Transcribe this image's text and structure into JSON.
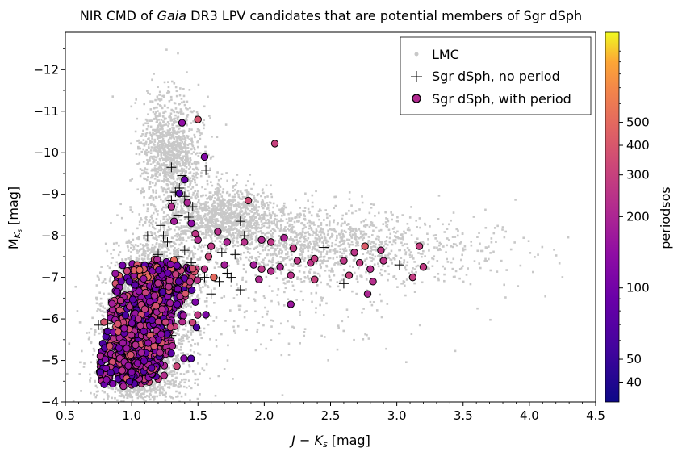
{
  "chart_data": {
    "type": "scatter",
    "title_pre": "NIR CMD of ",
    "title_em": "Gaia",
    "title_post": " DR3 LPV candidates that are potential members of Sgr dSph",
    "xlabel_main": "J − K",
    "xlabel_sub": "s",
    "xlabel_unit": " [mag]",
    "ylabel_main": "M",
    "ylabel_sub": "K",
    "ylabel_subsub": "s",
    "ylabel_unit": " [mag]",
    "xlim": [
      0.5,
      4.5
    ],
    "ylim": [
      -4,
      -12.9
    ],
    "xticks": [
      0.5,
      1.0,
      1.5,
      2.0,
      2.5,
      3.0,
      3.5,
      4.0,
      4.5
    ],
    "xtick_labels": [
      "0.5",
      "1.0",
      "1.5",
      "2.0",
      "2.5",
      "3.0",
      "3.5",
      "4.0",
      "4.5"
    ],
    "yticks": [
      -4,
      -5,
      -6,
      -7,
      -8,
      -9,
      -10,
      -11,
      -12
    ],
    "ytick_labels": [
      "−4",
      "−5",
      "−6",
      "−7",
      "−8",
      "−9",
      "−10",
      "−11",
      "−12"
    ],
    "legend": {
      "position": "upper-right",
      "entries": [
        "LMC",
        "Sgr dSph, no period",
        "Sgr dSph, with period"
      ]
    },
    "colorbar": {
      "label": "periodsos",
      "scale": "log",
      "range": [
        33,
        1200
      ],
      "ticks": [
        40,
        50,
        100,
        200,
        300,
        400,
        500
      ],
      "tick_labels": [
        "40",
        "50",
        "100",
        "200",
        "300",
        "400",
        "500"
      ]
    },
    "colors": {
      "lmc": "#c8c8c8",
      "cross": "#000000",
      "outline": "#000000"
    },
    "series": [
      {
        "name": "LMC",
        "style": "gray-dot",
        "density_components": [
          {
            "cx": 1.1,
            "cy": -5.9,
            "sx": 0.16,
            "sy": 0.7,
            "n": 2200
          },
          {
            "cx": 1.22,
            "cy": -7.2,
            "sx": 0.15,
            "sy": 0.55,
            "n": 900
          },
          {
            "cx": 1.3,
            "cy": -10.0,
            "sx": 0.12,
            "sy": 0.7,
            "n": 1100
          },
          {
            "cx": 1.05,
            "cy": -4.6,
            "sx": 0.2,
            "sy": 0.45,
            "n": 800
          },
          {
            "cx": 1.7,
            "cy": -8.5,
            "sx": 0.22,
            "sy": 0.35,
            "n": 1100
          },
          {
            "cx": 2.3,
            "cy": -7.9,
            "sx": 0.35,
            "sy": 0.4,
            "n": 900
          },
          {
            "cx": 3.1,
            "cy": -7.6,
            "sx": 0.45,
            "sy": 0.45,
            "n": 350
          },
          {
            "cx": 2.0,
            "cy": -6.3,
            "sx": 0.6,
            "sy": 0.8,
            "n": 250
          }
        ]
      },
      {
        "name": "Sgr dSph, no period",
        "style": "plus",
        "points": [
          {
            "x": 0.75,
            "y": -5.85
          },
          {
            "x": 0.82,
            "y": -5.9
          },
          {
            "x": 0.9,
            "y": -5.3
          },
          {
            "x": 0.92,
            "y": -5.05
          },
          {
            "x": 0.95,
            "y": -4.85
          },
          {
            "x": 0.97,
            "y": -5.45
          },
          {
            "x": 1.0,
            "y": -4.8
          },
          {
            "x": 1.02,
            "y": -5.2
          },
          {
            "x": 1.05,
            "y": -4.95
          },
          {
            "x": 1.08,
            "y": -5.6
          },
          {
            "x": 1.12,
            "y": -5.1
          },
          {
            "x": 1.15,
            "y": -5.35
          },
          {
            "x": 1.2,
            "y": -5.2
          },
          {
            "x": 1.25,
            "y": -5.5
          },
          {
            "x": 1.3,
            "y": -5.6
          },
          {
            "x": 1.1,
            "y": -6.9
          },
          {
            "x": 1.14,
            "y": -7.2
          },
          {
            "x": 1.2,
            "y": -7.55
          },
          {
            "x": 1.24,
            "y": -8.0
          },
          {
            "x": 1.27,
            "y": -7.85
          },
          {
            "x": 1.22,
            "y": -8.25
          },
          {
            "x": 1.3,
            "y": -8.85
          },
          {
            "x": 1.33,
            "y": -9.05
          },
          {
            "x": 1.36,
            "y": -9.15
          },
          {
            "x": 1.4,
            "y": -8.95
          },
          {
            "x": 1.38,
            "y": -9.45
          },
          {
            "x": 1.3,
            "y": -9.65
          },
          {
            "x": 1.35,
            "y": -8.5
          },
          {
            "x": 1.43,
            "y": -8.45
          },
          {
            "x": 1.46,
            "y": -8.7
          },
          {
            "x": 1.56,
            "y": -9.58
          },
          {
            "x": 1.4,
            "y": -7.65
          },
          {
            "x": 1.35,
            "y": -7.5
          },
          {
            "x": 1.45,
            "y": -7.35
          },
          {
            "x": 1.5,
            "y": -6.95
          },
          {
            "x": 1.55,
            "y": -7.0
          },
          {
            "x": 1.6,
            "y": -6.6
          },
          {
            "x": 1.66,
            "y": -6.9
          },
          {
            "x": 1.72,
            "y": -7.1
          },
          {
            "x": 1.78,
            "y": -7.55
          },
          {
            "x": 1.82,
            "y": -6.7
          },
          {
            "x": 1.85,
            "y": -8.0
          },
          {
            "x": 1.82,
            "y": -8.35
          },
          {
            "x": 1.68,
            "y": -7.6
          },
          {
            "x": 1.75,
            "y": -7.0
          },
          {
            "x": 2.45,
            "y": -7.72
          },
          {
            "x": 2.6,
            "y": -6.85
          },
          {
            "x": 3.02,
            "y": -7.3
          },
          {
            "x": 1.12,
            "y": -8.0
          },
          {
            "x": 1.05,
            "y": -6.6
          },
          {
            "x": 1.28,
            "y": -6.9
          },
          {
            "x": 0.85,
            "y": -5.55
          }
        ]
      },
      {
        "name": "Sgr dSph, with period",
        "style": "filled-circle",
        "dense_cluster": {
          "cx": 1.1,
          "cy": -6.0,
          "spread_x": 0.14,
          "spread_y": 1.2,
          "n": 900
        },
        "points": [
          {
            "x": 1.38,
            "y": -10.72,
            "p": 140
          },
          {
            "x": 1.5,
            "y": -10.8,
            "p": 380
          },
          {
            "x": 1.55,
            "y": -9.9,
            "p": 120
          },
          {
            "x": 1.4,
            "y": -9.35,
            "p": 90
          },
          {
            "x": 1.36,
            "y": -9.02,
            "p": 70
          },
          {
            "x": 1.88,
            "y": -8.85,
            "p": 340
          },
          {
            "x": 2.08,
            "y": -10.22,
            "p": 300
          },
          {
            "x": 1.5,
            "y": -7.9,
            "p": 220
          },
          {
            "x": 1.6,
            "y": -7.75,
            "p": 260
          },
          {
            "x": 1.72,
            "y": -7.85,
            "p": 200
          },
          {
            "x": 1.85,
            "y": -7.85,
            "p": 240
          },
          {
            "x": 1.98,
            "y": -7.9,
            "p": 210
          },
          {
            "x": 2.05,
            "y": -7.85,
            "p": 260
          },
          {
            "x": 2.15,
            "y": -7.95,
            "p": 200
          },
          {
            "x": 2.22,
            "y": -7.7,
            "p": 270
          },
          {
            "x": 2.25,
            "y": -7.4,
            "p": 260
          },
          {
            "x": 2.35,
            "y": -7.35,
            "p": 250
          },
          {
            "x": 2.38,
            "y": -7.45,
            "p": 280
          },
          {
            "x": 2.05,
            "y": -7.15,
            "p": 230
          },
          {
            "x": 2.12,
            "y": -7.25,
            "p": 200
          },
          {
            "x": 2.2,
            "y": -7.05,
            "p": 240
          },
          {
            "x": 1.98,
            "y": -7.2,
            "p": 250
          },
          {
            "x": 1.92,
            "y": -7.3,
            "p": 180
          },
          {
            "x": 1.96,
            "y": -6.95,
            "p": 210
          },
          {
            "x": 2.38,
            "y": -6.95,
            "p": 300
          },
          {
            "x": 2.2,
            "y": -6.35,
            "p": 160
          },
          {
            "x": 2.6,
            "y": -7.4,
            "p": 260
          },
          {
            "x": 2.64,
            "y": -7.05,
            "p": 300
          },
          {
            "x": 2.68,
            "y": -7.6,
            "p": 250
          },
          {
            "x": 2.72,
            "y": -7.35,
            "p": 280
          },
          {
            "x": 2.76,
            "y": -7.75,
            "p": 420
          },
          {
            "x": 2.8,
            "y": -7.2,
            "p": 230
          },
          {
            "x": 2.82,
            "y": -6.9,
            "p": 230
          },
          {
            "x": 2.78,
            "y": -6.6,
            "p": 200
          },
          {
            "x": 2.88,
            "y": -7.65,
            "p": 260
          },
          {
            "x": 2.9,
            "y": -7.4,
            "p": 250
          },
          {
            "x": 3.12,
            "y": -7.0,
            "p": 280
          },
          {
            "x": 3.17,
            "y": -7.75,
            "p": 290
          },
          {
            "x": 3.2,
            "y": -7.25,
            "p": 270
          },
          {
            "x": 1.45,
            "y": -8.3,
            "p": 140
          },
          {
            "x": 1.3,
            "y": -8.7,
            "p": 220
          },
          {
            "x": 1.32,
            "y": -8.35,
            "p": 180
          },
          {
            "x": 1.42,
            "y": -8.8,
            "p": 200
          },
          {
            "x": 1.48,
            "y": -8.05,
            "p": 260
          },
          {
            "x": 1.58,
            "y": -7.5,
            "p": 320
          },
          {
            "x": 1.62,
            "y": -7.0,
            "p": 500
          },
          {
            "x": 1.56,
            "y": -6.1,
            "p": 110
          },
          {
            "x": 1.0,
            "y": -4.72,
            "p": 120
          },
          {
            "x": 1.65,
            "y": -8.1,
            "p": 230
          },
          {
            "x": 1.7,
            "y": -7.3,
            "p": 180
          },
          {
            "x": 1.55,
            "y": -7.2,
            "p": 250
          }
        ]
      }
    ]
  }
}
